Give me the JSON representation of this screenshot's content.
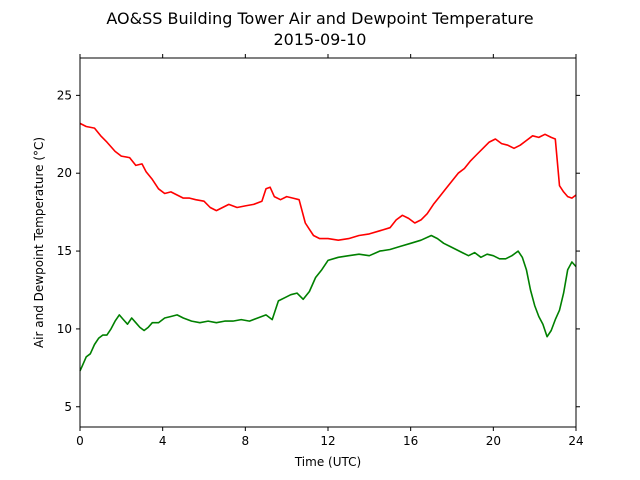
{
  "chart_data": {
    "type": "line",
    "title": "AO&SS Building Tower Air and Dewpoint Temperature",
    "subtitle": "2015-09-10",
    "xlabel": "Time (UTC)",
    "ylabel": "Air and Dewpoint Temperature (°C)",
    "xlim": [
      0,
      24
    ],
    "ylim": [
      3.7,
      27.4
    ],
    "xticks": [
      0,
      4,
      8,
      12,
      16,
      20,
      24
    ],
    "yticks": [
      5,
      10,
      15,
      20,
      25
    ],
    "grid": false,
    "legend": "none",
    "series": [
      {
        "color": "#ff0000",
        "x": [
          0.0,
          0.3,
          0.7,
          1.0,
          1.3,
          1.7,
          2.0,
          2.4,
          2.7,
          3.0,
          3.2,
          3.5,
          3.8,
          4.1,
          4.4,
          4.7,
          5.0,
          5.3,
          5.6,
          6.0,
          6.3,
          6.6,
          6.9,
          7.2,
          7.6,
          8.0,
          8.4,
          8.8,
          9.0,
          9.2,
          9.4,
          9.7,
          10.0,
          10.3,
          10.6,
          10.9,
          11.1,
          11.3,
          11.6,
          12.0,
          12.5,
          13.0,
          13.5,
          14.0,
          14.5,
          15.0,
          15.3,
          15.6,
          15.9,
          16.2,
          16.5,
          16.8,
          17.1,
          17.4,
          17.7,
          18.0,
          18.3,
          18.6,
          18.9,
          19.2,
          19.5,
          19.8,
          20.1,
          20.4,
          20.7,
          21.0,
          21.3,
          21.6,
          21.9,
          22.2,
          22.5,
          22.8,
          23.0,
          23.2,
          23.4,
          23.6,
          23.8,
          24.0
        ],
        "y": [
          23.2,
          23.0,
          22.9,
          22.4,
          22.0,
          21.4,
          21.1,
          21.0,
          20.5,
          20.6,
          20.1,
          19.6,
          19.0,
          18.7,
          18.8,
          18.6,
          18.4,
          18.4,
          18.3,
          18.2,
          17.8,
          17.6,
          17.8,
          18.0,
          17.8,
          17.9,
          18.0,
          18.2,
          19.0,
          19.1,
          18.5,
          18.3,
          18.5,
          18.4,
          18.3,
          16.8,
          16.4,
          16.0,
          15.8,
          15.8,
          15.7,
          15.8,
          16.0,
          16.1,
          16.3,
          16.5,
          17.0,
          17.3,
          17.1,
          16.8,
          17.0,
          17.4,
          18.0,
          18.5,
          19.0,
          19.5,
          20.0,
          20.3,
          20.8,
          21.2,
          21.6,
          22.0,
          22.2,
          21.9,
          21.8,
          21.6,
          21.8,
          22.1,
          22.4,
          22.3,
          22.5,
          22.3,
          22.2,
          19.2,
          18.8,
          18.5,
          18.4,
          18.6
        ]
      },
      {
        "color": "#008000",
        "x": [
          0.0,
          0.1,
          0.3,
          0.5,
          0.7,
          0.9,
          1.1,
          1.3,
          1.5,
          1.7,
          1.9,
          2.1,
          2.3,
          2.5,
          2.7,
          2.9,
          3.1,
          3.3,
          3.5,
          3.8,
          4.1,
          4.4,
          4.7,
          5.0,
          5.4,
          5.8,
          6.2,
          6.6,
          7.0,
          7.4,
          7.8,
          8.2,
          8.6,
          9.0,
          9.3,
          9.6,
          9.9,
          10.2,
          10.5,
          10.8,
          11.1,
          11.4,
          11.7,
          12.0,
          12.5,
          13.0,
          13.5,
          14.0,
          14.5,
          15.0,
          15.5,
          16.0,
          16.5,
          17.0,
          17.3,
          17.6,
          17.9,
          18.2,
          18.5,
          18.8,
          19.1,
          19.4,
          19.7,
          20.0,
          20.3,
          20.6,
          20.9,
          21.2,
          21.4,
          21.6,
          21.8,
          22.0,
          22.2,
          22.4,
          22.6,
          22.8,
          23.0,
          23.2,
          23.4,
          23.6,
          23.8,
          24.0
        ],
        "y": [
          7.3,
          7.6,
          8.2,
          8.4,
          9.0,
          9.4,
          9.6,
          9.6,
          10.0,
          10.5,
          10.9,
          10.6,
          10.3,
          10.7,
          10.4,
          10.1,
          9.9,
          10.1,
          10.4,
          10.4,
          10.7,
          10.8,
          10.9,
          10.7,
          10.5,
          10.4,
          10.5,
          10.4,
          10.5,
          10.5,
          10.6,
          10.5,
          10.7,
          10.9,
          10.6,
          11.8,
          12.0,
          12.2,
          12.3,
          11.9,
          12.4,
          13.3,
          13.8,
          14.4,
          14.6,
          14.7,
          14.8,
          14.7,
          15.0,
          15.1,
          15.3,
          15.5,
          15.7,
          16.0,
          15.8,
          15.5,
          15.3,
          15.1,
          14.9,
          14.7,
          14.9,
          14.6,
          14.8,
          14.7,
          14.5,
          14.5,
          14.7,
          15.0,
          14.6,
          13.8,
          12.5,
          11.5,
          10.8,
          10.3,
          9.5,
          9.9,
          10.6,
          11.2,
          12.3,
          13.8,
          14.3,
          14.0
        ]
      }
    ]
  }
}
